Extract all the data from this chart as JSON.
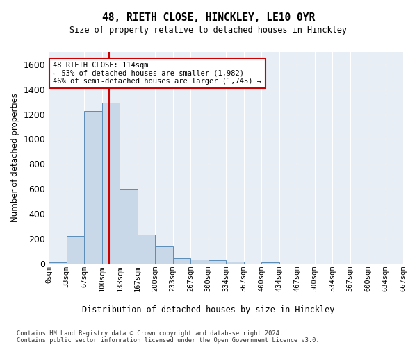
{
  "title": "48, RIETH CLOSE, HINCKLEY, LE10 0YR",
  "subtitle": "Size of property relative to detached houses in Hinckley",
  "xlabel": "Distribution of detached houses by size in Hinckley",
  "ylabel": "Number of detached properties",
  "bar_color": "#c8d8e8",
  "bar_edge_color": "#5b8db8",
  "background_color": "#e8eef5",
  "grid_color": "#ffffff",
  "bin_labels": [
    "0sqm",
    "33sqm",
    "67sqm",
    "100sqm",
    "133sqm",
    "167sqm",
    "200sqm",
    "233sqm",
    "267sqm",
    "300sqm",
    "334sqm",
    "367sqm",
    "400sqm",
    "434sqm",
    "467sqm",
    "500sqm",
    "534sqm",
    "567sqm",
    "600sqm",
    "634sqm",
    "667sqm"
  ],
  "bar_values": [
    10,
    220,
    1225,
    1295,
    595,
    235,
    137,
    45,
    30,
    25,
    15,
    0,
    12,
    0,
    0,
    0,
    0,
    0,
    0,
    0
  ],
  "ylim": [
    0,
    1700
  ],
  "yticks": [
    0,
    200,
    400,
    600,
    800,
    1000,
    1200,
    1400,
    1600
  ],
  "property_line_x": 114,
  "bin_width": 33.35,
  "annotation_text": "48 RIETH CLOSE: 114sqm\n← 53% of detached houses are smaller (1,982)\n46% of semi-detached houses are larger (1,745) →",
  "footer_text": "Contains HM Land Registry data © Crown copyright and database right 2024.\nContains public sector information licensed under the Open Government Licence v3.0.",
  "red_line_color": "#cc0000",
  "annotation_box_color": "#ffffff",
  "annotation_box_edge": "#cc0000"
}
